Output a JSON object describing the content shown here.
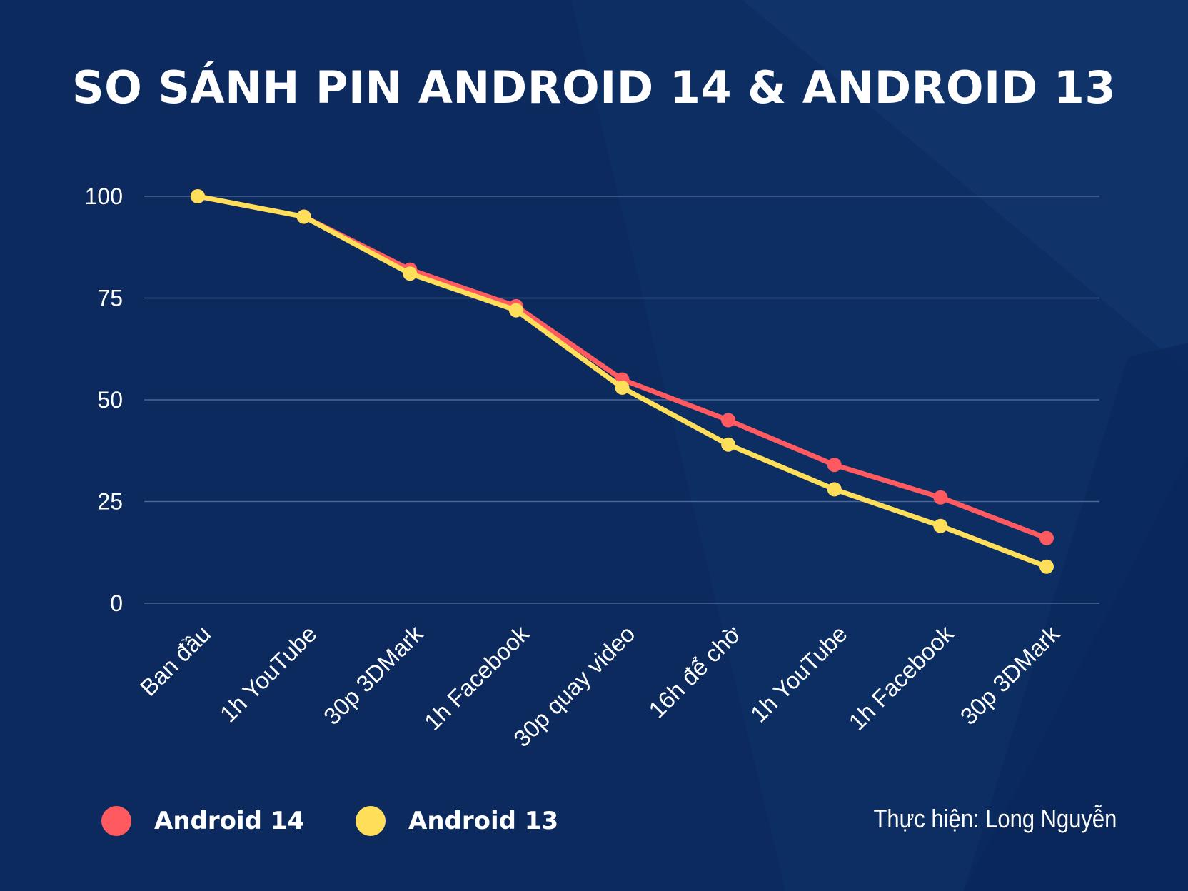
{
  "colors": {
    "background": "#0c2a5e",
    "grid": "#4a6796",
    "android14": "#ff5a5f",
    "android13": "#ffdf5a"
  },
  "title": "SO SÁNH PIN ANDROID 14 & ANDROID 13",
  "credit": "Thực hiện: Long Nguyễn",
  "legend": [
    {
      "name": "Android 14",
      "color": "#ff5a5f"
    },
    {
      "name": "Android 13",
      "color": "#ffdf5a"
    }
  ],
  "chart_data": {
    "type": "line",
    "title": "SO SÁNH PIN ANDROID 14 & ANDROID 13",
    "xlabel": "",
    "ylabel": "",
    "ylim": [
      0,
      100
    ],
    "yticks": [
      0,
      25,
      50,
      75,
      100
    ],
    "grid": true,
    "legend_position": "bottom-left",
    "categories": [
      "Ban đầu",
      "1h YouTube",
      "30p 3DMark",
      "1h Facebook",
      "30p quay video",
      "16h để chờ",
      "1h YouTube",
      "1h Facebook",
      "30p 3DMark"
    ],
    "series": [
      {
        "name": "Android 14",
        "color": "#ff5a5f",
        "values": [
          100,
          95,
          82,
          73,
          55,
          45,
          34,
          26,
          16
        ]
      },
      {
        "name": "Android 13",
        "color": "#ffdf5a",
        "values": [
          100,
          95,
          81,
          72,
          53,
          39,
          28,
          19,
          9
        ]
      }
    ]
  }
}
